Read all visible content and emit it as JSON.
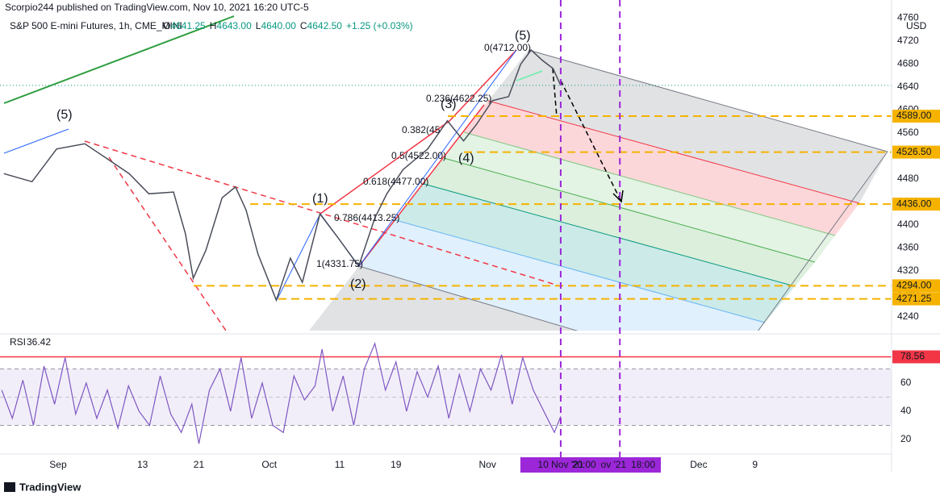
{
  "header": {
    "publisher": "Scorpio244 published on TradingView.com, Nov 10, 2021 16:20 UTC-5",
    "footer": "TradingView"
  },
  "chart_data": [
    {
      "type": "line",
      "title": "S&P 500 E-mini Futures, 1h, CME_MINI",
      "ohlc": [
        {
          "key": "O",
          "text": "4641.25"
        },
        {
          "key": "H",
          "text": "4643.00"
        },
        {
          "key": "L",
          "text": "4640.00"
        },
        {
          "key": "C",
          "text": "4642.50"
        }
      ],
      "change": "+1.25 (+0.03%)",
      "currency": "USD",
      "color": "#4a4e5a",
      "x": [
        -6.7,
        -2.7,
        0.8,
        4.8,
        7.6,
        11.1,
        13.9,
        17.4,
        19.1,
        20.2,
        22,
        24.3,
        26.2,
        27.7,
        29.4,
        32,
        34,
        35.7,
        38.2,
        40.8,
        43.7,
        46,
        47.7,
        50,
        53.5,
        56.3,
        58.6,
        60.4,
        62.7,
        65,
        66.7,
        68.2,
        69.8,
        71.3,
        72.4
      ],
      "values": [
        4489,
        4475,
        4532,
        4541,
        4518,
        4489,
        4454,
        4457,
        4384,
        4307,
        4356,
        4447,
        4466,
        4426,
        4349,
        4269,
        4342,
        4300,
        4419,
        4377,
        4328,
        4412,
        4454,
        4496,
        4532,
        4581,
        4546,
        4574,
        4616,
        4623,
        4679,
        4704,
        4686,
        4672,
        4642.5
      ],
      "xlim": [
        -7.25,
        119.4
      ],
      "xticks": [
        {
          "value": 1,
          "label": "Sep"
        },
        13,
        21,
        {
          "value": 31,
          "label": "Oct"
        },
        {
          "value": 41,
          "label": "11"
        },
        {
          "value": 49,
          "label": "19"
        },
        {
          "value": 62,
          "label": "Nov"
        },
        {
          "value": 92,
          "label": "Dec"
        },
        {
          "value": 100,
          "label": "9"
        }
      ],
      "ylim": [
        4216,
        4791
      ],
      "yticks": [
        4240,
        4280,
        4320,
        4360,
        4400,
        4440,
        4480,
        4520,
        4560,
        4600,
        4640,
        4680,
        4720,
        4760
      ],
      "levels": [
        {
          "value": 4589,
          "label": "4589.00"
        },
        {
          "value": 4526.5,
          "label": "4526.50"
        },
        {
          "value": 4436,
          "label": "4436.00"
        },
        {
          "value": 4294,
          "label": "4294.00"
        },
        {
          "value": 4271.25,
          "label": "4271.25"
        }
      ],
      "level_color": "#f5b300",
      "fib_labels": [
        "0(4712.00)",
        "0.236(4622.25)",
        "0.382(45",
        "0.5(4522.00)",
        "0.618(4477.00)",
        "0.786(4413.25)",
        "1(4331.75)"
      ],
      "wave_labels": [
        "(5)",
        "(1)",
        "(2)",
        "(3)",
        "(4)",
        "(5)"
      ],
      "vlines": [
        72.4,
        80.8
      ],
      "vline_color": "#9c27d8",
      "cursor_labels": [
        {
          "value": 72.4,
          "label": "10 Nov '21"
        },
        {
          "value": 75.7,
          "label": "20:00"
        },
        {
          "value": 79.9,
          "label": "ov '21"
        },
        {
          "value": 84.1,
          "label": "18:00"
        }
      ]
    },
    {
      "type": "line",
      "title": "RSI",
      "color": "#7e57c2",
      "x": [
        -7,
        -5.5,
        -4,
        -2.5,
        -1,
        0.5,
        2,
        3.5,
        5,
        6.5,
        8,
        9.5,
        11,
        12.5,
        14,
        15.5,
        17,
        18.5,
        20,
        21,
        22.5,
        24,
        25.5,
        27,
        28.5,
        30,
        31.5,
        33,
        34.5,
        36,
        37.5,
        38.5,
        40,
        41.5,
        43,
        44.5,
        46,
        47.5,
        49,
        50.5,
        52,
        53.5,
        55,
        56.5,
        58,
        59.5,
        61,
        62.5,
        64,
        65.5,
        67,
        68.5,
        70,
        71.5,
        72.4
      ],
      "values": [
        55,
        35,
        62,
        30,
        72,
        45,
        78,
        38,
        60,
        35,
        55,
        28,
        58,
        40,
        30,
        65,
        38,
        25,
        45,
        17,
        55,
        70,
        40,
        78,
        35,
        60,
        30,
        25,
        65,
        48,
        58,
        84,
        40,
        65,
        30,
        70,
        88,
        55,
        75,
        40,
        68,
        50,
        72,
        35,
        66,
        40,
        70,
        55,
        80,
        45,
        78,
        55,
        40,
        25,
        36.42
      ],
      "ylim": [
        11.4,
        91.4
      ],
      "yticks": [
        20,
        40,
        60
      ],
      "level": {
        "value": 78.56,
        "label": "78.56"
      },
      "level_color": "#f23645",
      "band": [
        30,
        70
      ]
    }
  ]
}
